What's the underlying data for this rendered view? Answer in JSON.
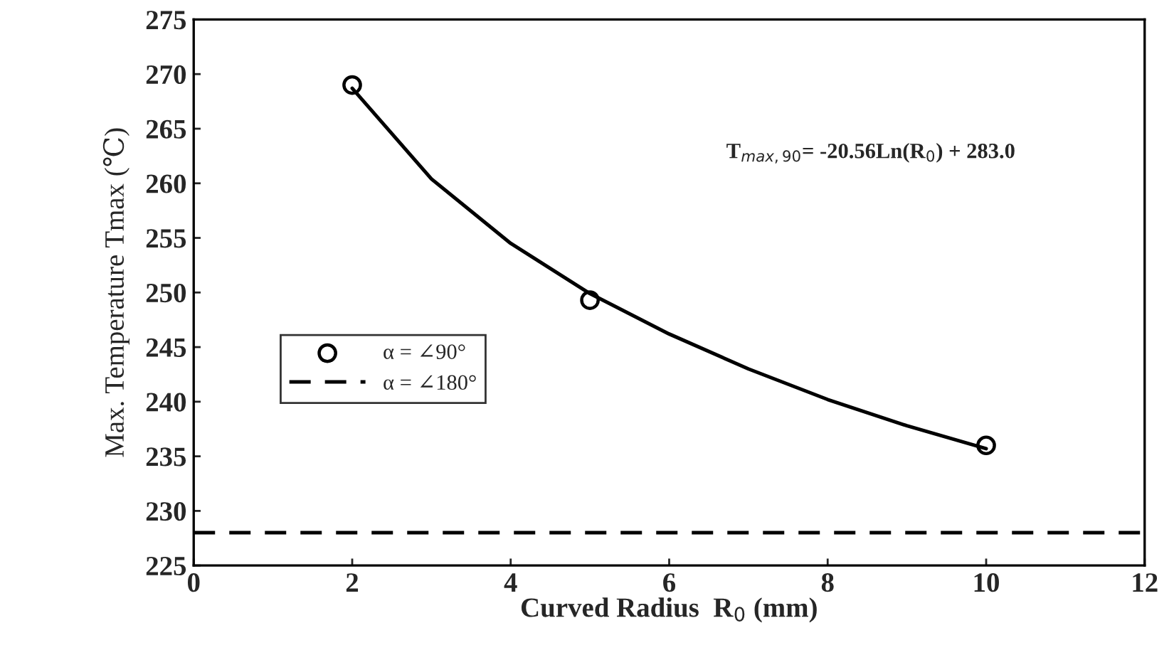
{
  "chart_data": {
    "type": "scatter",
    "xlabel": "Curved Radius  R$_{0}$ (mm)",
    "ylabel": "Max. Temperature Tmax (℃)",
    "series": [
      {
        "name": "α = ∠90°",
        "color": "#000000",
        "marker": "circle",
        "x": [
          2,
          5,
          10
        ],
        "values": [
          269,
          249.3,
          236
        ]
      },
      {
        "type": "line",
        "color": "#000000",
        "line_style": "solid",
        "marker": "none",
        "x": [
          2,
          3,
          4,
          5,
          6,
          7,
          8,
          9,
          10
        ],
        "values": [
          268.7,
          260.4,
          254.5,
          249.9,
          246.2,
          243.0,
          240.2,
          237.8,
          235.7
        ]
      },
      {
        "name": "α = ∠180°",
        "type": "line",
        "color": "#000000",
        "line_style": "dashed",
        "marker": "none",
        "x": [
          0,
          12
        ],
        "values": [
          228,
          228
        ]
      }
    ],
    "annotations": [
      "T$_{max,90}$= -20.56Ln(R$_{0}$) + 283.0"
    ],
    "xlim": [
      0,
      12
    ],
    "xticks": [
      0,
      2,
      4,
      6,
      8,
      10,
      12
    ],
    "ylim": [
      225,
      275
    ],
    "yticks": [
      225,
      230,
      235,
      240,
      245,
      250,
      255,
      260,
      265,
      270,
      275
    ],
    "grid": false,
    "legend": "center left"
  }
}
